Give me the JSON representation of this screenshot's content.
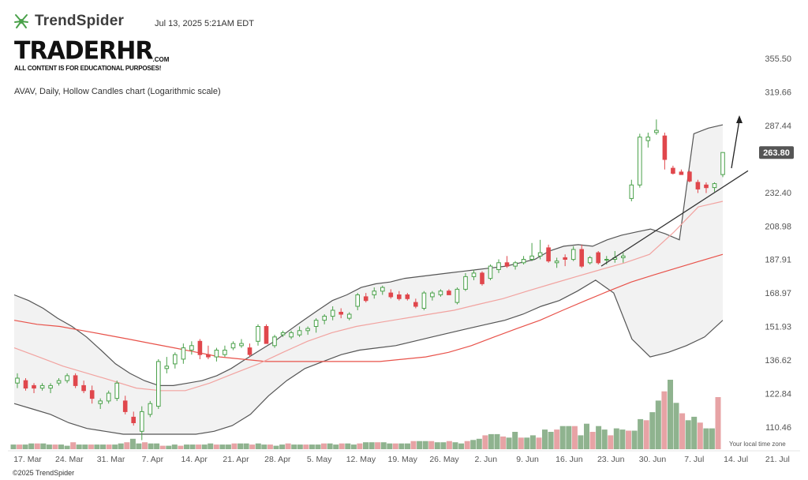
{
  "header": {
    "brand": "TrendSpider",
    "timestamp": "Jul 13, 2025 5:21AM EDT",
    "watermark_logo": "TRADERHR",
    "watermark_dotcom": ".COM",
    "watermark_disclaimer": "ALL CONTENT IS FOR EDUCATIONAL PURPOSES!",
    "chart_title": "AVAV, Daily, Hollow Candles chart (Logarithmic scale)"
  },
  "footer": {
    "copyright": "©2025 TrendSpider",
    "timezone_label": "Your local time zone"
  },
  "colors": {
    "up": "#4aa14a",
    "down": "#e0474c",
    "bb_band": "#555555",
    "ma_slow": "#e8524a",
    "ma_fast": "#f2a3a0",
    "vol_up": "#8fb38f",
    "vol_down": "#e7a3a5",
    "last_price_bg": "#555555"
  },
  "chart_data": {
    "type": "candlestick",
    "symbol": "AVAV",
    "interval": "Daily",
    "scale": "log",
    "ylim": [
      105,
      370
    ],
    "y_ticks": [
      "355.50",
      "319.66",
      "287.44",
      "263.80",
      "232.40",
      "208.98",
      "187.91",
      "168.97",
      "151.93",
      "136.62",
      "122.84",
      "110.46"
    ],
    "y_tick_values": [
      355.5,
      319.66,
      287.44,
      263.8,
      232.4,
      208.98,
      187.91,
      168.97,
      151.93,
      136.62,
      122.84,
      110.46
    ],
    "x_ticks": [
      "17. Mar",
      "24. Mar",
      "31. Mar",
      "7. Apr",
      "14. Apr",
      "21. Apr",
      "28. Apr",
      "5. May",
      "12. May",
      "19. May",
      "26. May",
      "2. Jun",
      "9. Jun",
      "16. Jun",
      "23. Jun",
      "30. Jun",
      "7. Jul",
      "14. Jul",
      "21. Jul"
    ],
    "last_price": "263.80",
    "candles": [
      {
        "o": 127,
        "h": 131,
        "l": 125,
        "c": 129
      },
      {
        "o": 128,
        "h": 129,
        "l": 124,
        "c": 125
      },
      {
        "o": 126,
        "h": 127,
        "l": 123,
        "c": 125
      },
      {
        "o": 125,
        "h": 127,
        "l": 124,
        "c": 126
      },
      {
        "o": 125,
        "h": 127,
        "l": 123,
        "c": 126
      },
      {
        "o": 127,
        "h": 129,
        "l": 126,
        "c": 128
      },
      {
        "o": 128,
        "h": 131,
        "l": 127,
        "c": 130
      },
      {
        "o": 130,
        "h": 131,
        "l": 125,
        "c": 126
      },
      {
        "o": 126,
        "h": 128,
        "l": 123,
        "c": 124
      },
      {
        "o": 124,
        "h": 126,
        "l": 119,
        "c": 121
      },
      {
        "o": 119,
        "h": 121,
        "l": 117,
        "c": 120
      },
      {
        "o": 120,
        "h": 124,
        "l": 119,
        "c": 123
      },
      {
        "o": 121,
        "h": 128,
        "l": 120,
        "c": 127
      },
      {
        "o": 120,
        "h": 122,
        "l": 115,
        "c": 116
      },
      {
        "o": 114,
        "h": 116,
        "l": 111,
        "c": 112
      },
      {
        "o": 109,
        "h": 118,
        "l": 106,
        "c": 116
      },
      {
        "o": 115,
        "h": 120,
        "l": 114,
        "c": 119
      },
      {
        "o": 118,
        "h": 137,
        "l": 117,
        "c": 136
      },
      {
        "o": 133,
        "h": 138,
        "l": 131,
        "c": 134
      },
      {
        "o": 135,
        "h": 140,
        "l": 133,
        "c": 139
      },
      {
        "o": 137,
        "h": 144,
        "l": 135,
        "c": 142
      },
      {
        "o": 141,
        "h": 145,
        "l": 139,
        "c": 143
      },
      {
        "o": 145,
        "h": 146,
        "l": 137,
        "c": 139
      },
      {
        "o": 139,
        "h": 143,
        "l": 137,
        "c": 138
      },
      {
        "o": 138,
        "h": 142,
        "l": 136,
        "c": 141
      },
      {
        "o": 139,
        "h": 143,
        "l": 138,
        "c": 141
      },
      {
        "o": 142,
        "h": 145,
        "l": 141,
        "c": 144
      },
      {
        "o": 143,
        "h": 146,
        "l": 142,
        "c": 144
      },
      {
        "o": 142,
        "h": 144,
        "l": 138,
        "c": 139
      },
      {
        "o": 145,
        "h": 153,
        "l": 143,
        "c": 152
      },
      {
        "o": 152,
        "h": 153,
        "l": 144,
        "c": 144
      },
      {
        "o": 143,
        "h": 148,
        "l": 142,
        "c": 147
      },
      {
        "o": 148,
        "h": 150,
        "l": 147,
        "c": 149
      },
      {
        "o": 147,
        "h": 150,
        "l": 146,
        "c": 149
      },
      {
        "o": 148,
        "h": 152,
        "l": 147,
        "c": 150
      },
      {
        "o": 150,
        "h": 152,
        "l": 148,
        "c": 151
      },
      {
        "o": 152,
        "h": 156,
        "l": 149,
        "c": 155
      },
      {
        "o": 155,
        "h": 158,
        "l": 153,
        "c": 157
      },
      {
        "o": 157,
        "h": 162,
        "l": 155,
        "c": 160
      },
      {
        "o": 159,
        "h": 161,
        "l": 156,
        "c": 158
      },
      {
        "o": 156,
        "h": 159,
        "l": 155,
        "c": 158
      },
      {
        "o": 162,
        "h": 169,
        "l": 160,
        "c": 168
      },
      {
        "o": 167,
        "h": 169,
        "l": 164,
        "c": 165
      },
      {
        "o": 168,
        "h": 172,
        "l": 166,
        "c": 170
      },
      {
        "o": 170,
        "h": 173,
        "l": 168,
        "c": 172
      },
      {
        "o": 169,
        "h": 171,
        "l": 166,
        "c": 167
      },
      {
        "o": 168,
        "h": 170,
        "l": 165,
        "c": 166
      },
      {
        "o": 168,
        "h": 169,
        "l": 165,
        "c": 166
      },
      {
        "o": 164,
        "h": 166,
        "l": 161,
        "c": 162
      },
      {
        "o": 161,
        "h": 170,
        "l": 160,
        "c": 169
      },
      {
        "o": 167,
        "h": 170,
        "l": 165,
        "c": 169
      },
      {
        "o": 168,
        "h": 171,
        "l": 167,
        "c": 170
      },
      {
        "o": 170,
        "h": 171,
        "l": 168,
        "c": 168
      },
      {
        "o": 164,
        "h": 172,
        "l": 163,
        "c": 171
      },
      {
        "o": 171,
        "h": 180,
        "l": 170,
        "c": 178
      },
      {
        "o": 178,
        "h": 182,
        "l": 176,
        "c": 180
      },
      {
        "o": 180,
        "h": 181,
        "l": 173,
        "c": 174
      },
      {
        "o": 177,
        "h": 185,
        "l": 176,
        "c": 184
      },
      {
        "o": 182,
        "h": 188,
        "l": 180,
        "c": 186
      },
      {
        "o": 186,
        "h": 190,
        "l": 183,
        "c": 184
      },
      {
        "o": 184,
        "h": 187,
        "l": 182,
        "c": 186
      },
      {
        "o": 186,
        "h": 190,
        "l": 185,
        "c": 188
      },
      {
        "o": 188,
        "h": 198,
        "l": 187,
        "c": 190
      },
      {
        "o": 190,
        "h": 200,
        "l": 188,
        "c": 192
      },
      {
        "o": 195,
        "h": 197,
        "l": 186,
        "c": 187
      },
      {
        "o": 186,
        "h": 189,
        "l": 183,
        "c": 187
      },
      {
        "o": 189,
        "h": 191,
        "l": 184,
        "c": 188
      },
      {
        "o": 188,
        "h": 196,
        "l": 187,
        "c": 194
      },
      {
        "o": 194,
        "h": 197,
        "l": 183,
        "c": 184
      },
      {
        "o": 186,
        "h": 190,
        "l": 185,
        "c": 189
      },
      {
        "o": 192,
        "h": 193,
        "l": 185,
        "c": 186
      },
      {
        "o": 188,
        "h": 190,
        "l": 185,
        "c": 188
      },
      {
        "o": 188,
        "h": 193,
        "l": 186,
        "c": 189
      },
      {
        "o": 189,
        "h": 192,
        "l": 186,
        "c": 190
      },
      {
        "o": 228,
        "h": 242,
        "l": 226,
        "c": 238
      },
      {
        "o": 238,
        "h": 280,
        "l": 236,
        "c": 277
      },
      {
        "o": 274,
        "h": 281,
        "l": 268,
        "c": 277
      },
      {
        "o": 281,
        "h": 293,
        "l": 279,
        "c": 283
      },
      {
        "o": 278,
        "h": 281,
        "l": 250,
        "c": 258
      },
      {
        "o": 251,
        "h": 253,
        "l": 246,
        "c": 247
      },
      {
        "o": 248,
        "h": 250,
        "l": 246,
        "c": 246
      },
      {
        "o": 248,
        "h": 249,
        "l": 240,
        "c": 241
      },
      {
        "o": 240,
        "h": 242,
        "l": 232,
        "c": 235
      },
      {
        "o": 238,
        "h": 240,
        "l": 232,
        "c": 236
      },
      {
        "o": 236,
        "h": 240,
        "l": 233,
        "c": 239
      },
      {
        "o": 246,
        "h": 264,
        "l": 244,
        "c": 263.8
      }
    ],
    "volume": [
      4,
      4,
      4,
      5,
      5,
      5,
      4,
      4,
      4,
      3,
      6,
      4,
      4,
      4,
      4,
      4,
      4,
      4,
      5,
      6,
      9,
      5,
      6,
      5,
      5,
      3,
      3,
      4,
      3,
      4,
      4,
      4,
      4,
      5,
      4,
      4,
      4,
      5,
      5,
      5,
      4,
      5,
      4,
      4,
      3,
      4,
      5,
      4,
      4,
      4,
      4,
      4,
      5,
      5,
      4,
      5,
      5,
      4,
      5,
      6,
      6,
      6,
      6,
      5,
      5,
      5,
      5,
      7,
      7,
      7,
      7,
      6,
      6,
      7,
      6,
      5,
      7,
      8,
      9,
      12,
      13,
      13,
      11,
      10,
      15,
      10,
      10,
      12,
      10,
      17,
      15,
      17,
      20,
      20,
      20,
      12,
      22,
      15,
      20,
      17,
      12,
      18,
      17,
      16,
      16,
      26,
      25,
      32,
      42,
      50,
      60,
      40,
      31,
      25,
      28,
      23,
      18,
      18,
      45
    ],
    "bollinger_upper": [
      168,
      165,
      161,
      156,
      152,
      147,
      141,
      135,
      131,
      128,
      126,
      126,
      127,
      128,
      130,
      133,
      137,
      141,
      145,
      150,
      155,
      160,
      165,
      168,
      172,
      174,
      175,
      177,
      178,
      179,
      180,
      181,
      182,
      183,
      184,
      186,
      188,
      193,
      196,
      197,
      196,
      200,
      203,
      205,
      207,
      204,
      200,
      280,
      285,
      288
    ],
    "bollinger_lower": [
      119,
      117,
      115,
      112,
      110,
      109,
      108,
      108,
      108,
      108,
      108,
      109,
      111,
      115,
      122,
      128,
      133,
      136,
      139,
      141,
      142,
      143,
      145,
      147,
      149,
      151,
      153,
      155,
      158,
      162,
      165,
      170,
      176,
      169,
      146,
      138,
      140,
      143,
      147,
      155
    ],
    "ma_slow": [
      155,
      153,
      152,
      150,
      148,
      146,
      144,
      142,
      140,
      138,
      137,
      136,
      136,
      136,
      136,
      136,
      136,
      137,
      138,
      140,
      143,
      147,
      151,
      155,
      160,
      165,
      170,
      175,
      179,
      183,
      187,
      191
    ],
    "ma_fast": [
      142,
      138,
      134,
      131,
      128,
      125,
      124,
      124,
      127,
      131,
      135,
      140,
      145,
      149,
      152,
      154,
      156,
      158,
      160,
      163,
      166,
      170,
      174,
      178,
      182,
      186,
      191,
      205,
      222,
      226
    ],
    "trendline": {
      "from": 184,
      "to": 250
    },
    "annotation_arrow": "up"
  }
}
